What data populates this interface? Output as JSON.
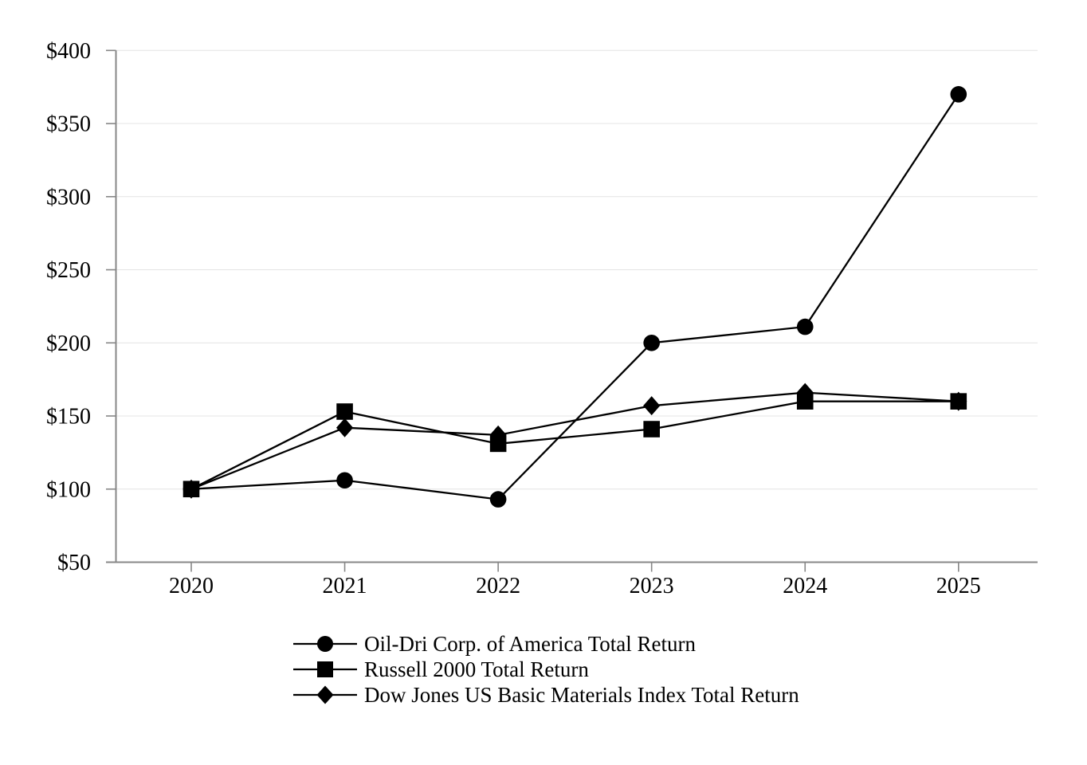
{
  "chart_data": {
    "type": "line",
    "title": "",
    "x": [
      "2020",
      "2021",
      "2022",
      "2023",
      "2024",
      "2025"
    ],
    "y_tick_labels": [
      "$50",
      "$100",
      "$150",
      "$200",
      "$250",
      "$300",
      "$350",
      "$400"
    ],
    "ylim": [
      50,
      400
    ],
    "grid": "horizontal",
    "legend_position": "below-chart-left",
    "axis_color": "#878787",
    "gridline_color": "#e4e4e4",
    "series": [
      {
        "name": "Oil-Dri Corp. of America Total Return",
        "marker": "circle",
        "color": "#000000",
        "values": [
          100,
          106,
          93,
          200,
          211,
          370
        ]
      },
      {
        "name": "Russell 2000 Total Return",
        "marker": "square",
        "color": "#000000",
        "values": [
          100,
          153,
          131,
          141,
          160,
          160
        ]
      },
      {
        "name": "Dow Jones US Basic Materials Index Total Return",
        "marker": "diamond",
        "color": "#000000",
        "values": [
          100,
          142,
          137,
          157,
          166,
          160
        ]
      }
    ]
  }
}
